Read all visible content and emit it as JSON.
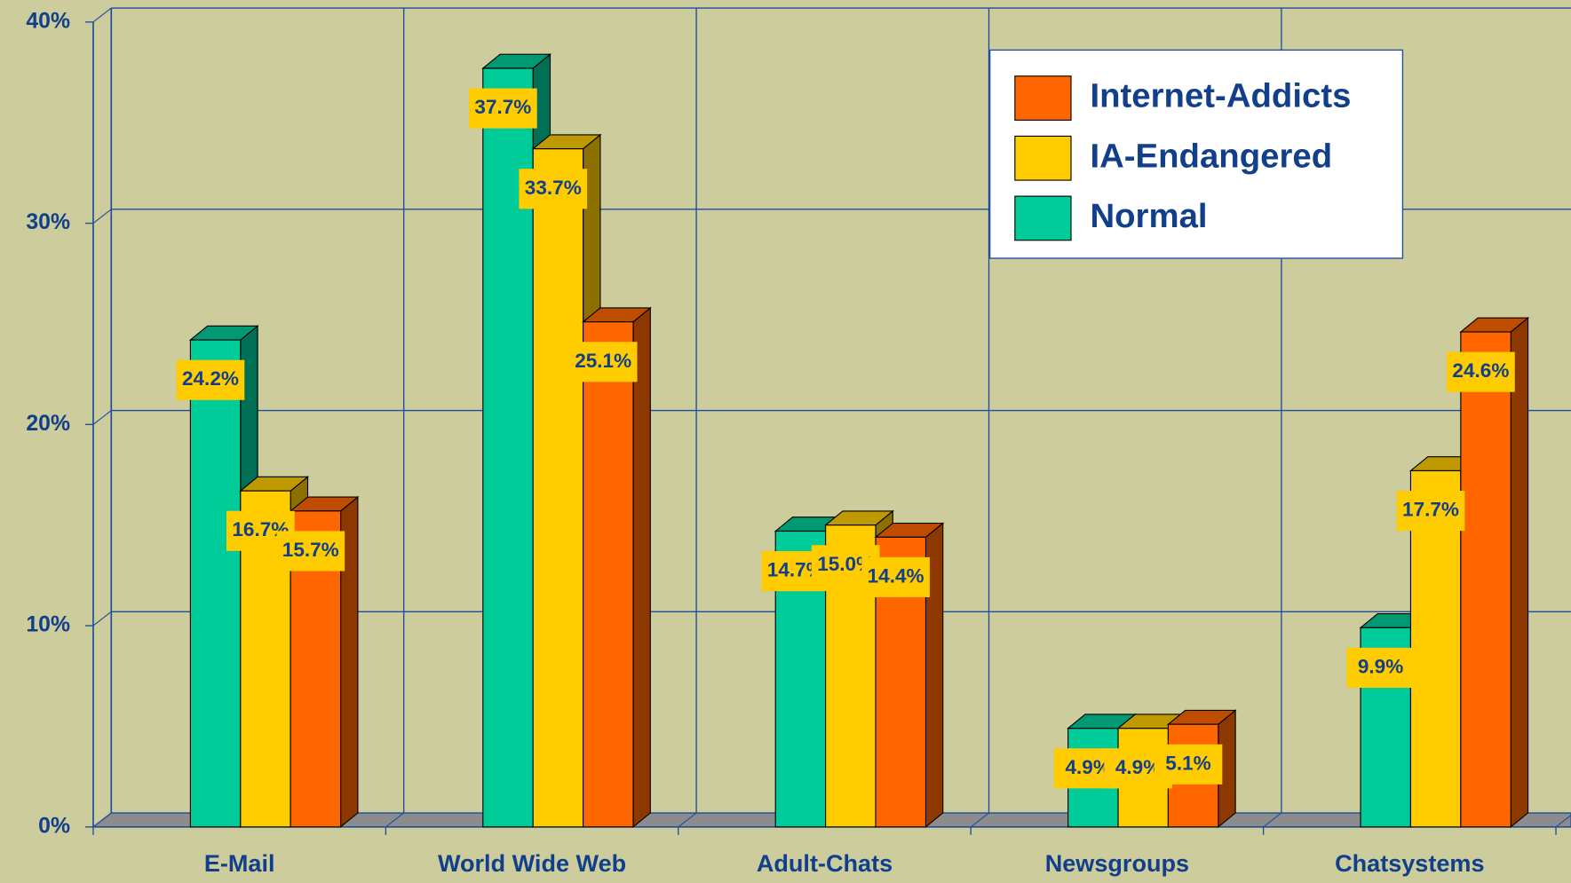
{
  "chart_data": {
    "type": "bar3d",
    "categories": [
      "E-Mail",
      "World Wide Web",
      "Adult-Chats",
      "Newsgroups",
      "Chatsystems"
    ],
    "series": [
      {
        "name": "Normal",
        "color": "#00cc99",
        "values": [
          24.2,
          37.7,
          14.7,
          4.9,
          9.9
        ],
        "value_labels": [
          "24.2%",
          "37.7%",
          "14.7%",
          "4.9%",
          "9.9%"
        ]
      },
      {
        "name": "IA-Endangered",
        "color": "#ffcc00",
        "values": [
          16.7,
          33.7,
          15.0,
          4.9,
          17.7
        ],
        "value_labels": [
          "16.7%",
          "33.7%",
          "15.0%",
          "4.9%",
          "17.7%"
        ]
      },
      {
        "name": "Internet-Addicts",
        "color": "#ff6600",
        "values": [
          15.7,
          25.1,
          14.4,
          5.1,
          24.6
        ],
        "value_labels": [
          "15.7%",
          "25.1%",
          "14.4%",
          "5.1%",
          "24.6%"
        ]
      }
    ],
    "ylim": [
      0,
      40
    ],
    "yticks": [
      {
        "value": 0,
        "label": "0%"
      },
      {
        "value": 10,
        "label": "10%"
      },
      {
        "value": 20,
        "label": "20%"
      },
      {
        "value": 30,
        "label": "30%"
      },
      {
        "value": 40,
        "label": "40%"
      }
    ],
    "grid": true,
    "legend": "upper right"
  }
}
